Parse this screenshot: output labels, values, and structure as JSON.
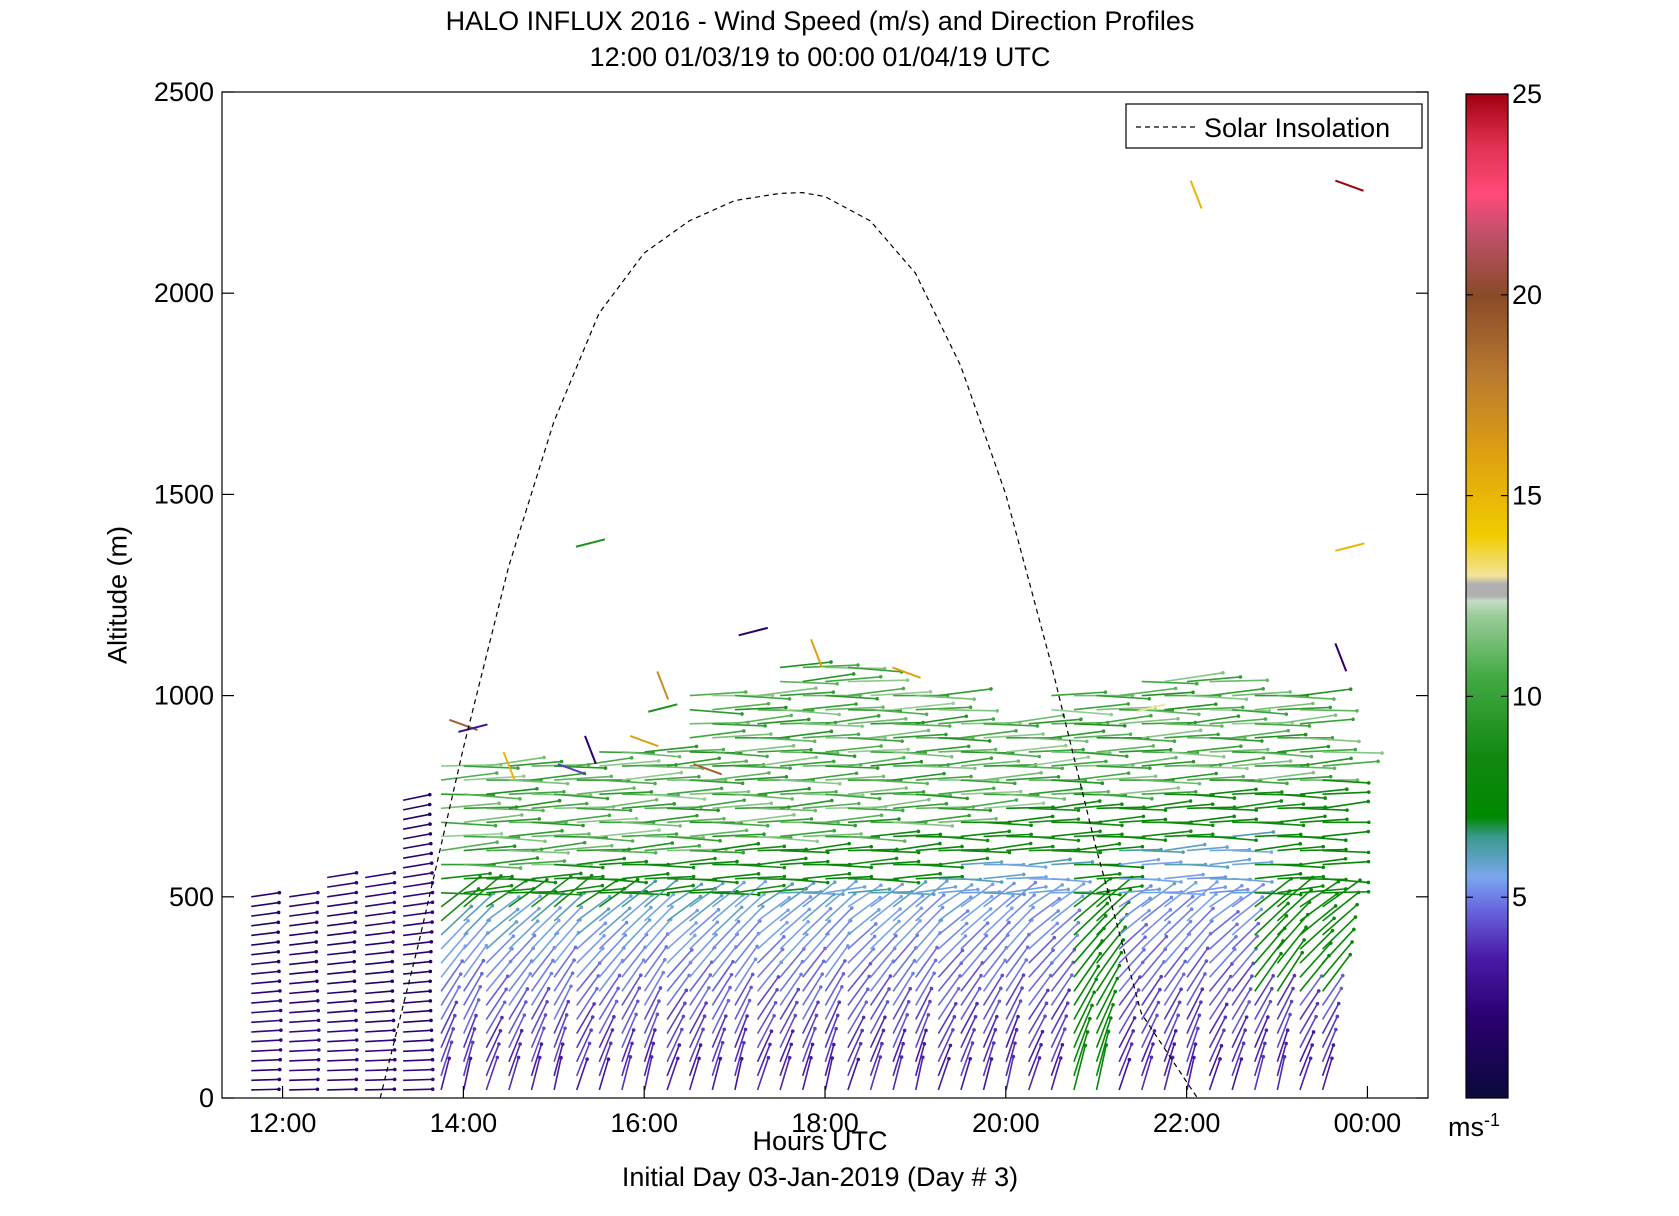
{
  "title": "HALO INFLUX 2016 - Wind Speed (m/s) and Direction Profiles",
  "subtitle": "12:00 01/03/19 to 00:00 01/04/19  UTC",
  "footer": "Initial Day 03-Jan-2019 (Day # 3)",
  "colorbar": {
    "unit_base": "ms",
    "unit_exp": "-1",
    "range": [
      0,
      25
    ],
    "ticks": [
      "5",
      "10",
      "15",
      "20",
      "25"
    ]
  },
  "chart_data": {
    "type": "quiver",
    "xlabel": "Hours UTC",
    "ylabel": "Altitude (m)",
    "xlim": [
      11.33,
      24.67
    ],
    "ylim": [
      0,
      2500
    ],
    "xticks": [
      {
        "value": 12,
        "label": "12:00"
      },
      {
        "value": 14,
        "label": "14:00"
      },
      {
        "value": 16,
        "label": "16:00"
      },
      {
        "value": 18,
        "label": "18:00"
      },
      {
        "value": 20,
        "label": "20:00"
      },
      {
        "value": 22,
        "label": "22:00"
      },
      {
        "value": 24,
        "label": "00:00"
      }
    ],
    "yticks": [
      "0",
      "500",
      "1000",
      "1500",
      "2000",
      "2500"
    ],
    "grid": false,
    "legend": {
      "position": "top-right",
      "entries": [
        "Solar Insolation"
      ]
    },
    "solar_insolation": {
      "style": "dashed",
      "color": "#000000",
      "x": [
        13.08,
        13.5,
        14.0,
        14.5,
        15.0,
        15.5,
        16.0,
        16.5,
        17.0,
        17.5,
        17.75,
        18.0,
        18.5,
        19.0,
        19.5,
        20.0,
        20.5,
        21.0,
        21.5,
        22.0,
        22.12
      ],
      "y": [
        0,
        380,
        870,
        1320,
        1680,
        1950,
        2100,
        2180,
        2230,
        2248,
        2250,
        2240,
        2180,
        2050,
        1820,
        1500,
        1080,
        620,
        210,
        40,
        0
      ]
    },
    "wind_samples": [
      {
        "hour": 12.0,
        "top": 500,
        "speed": 2,
        "dir": "W"
      },
      {
        "hour": 12.4,
        "top": 550,
        "speed": 2,
        "dir": "W"
      },
      {
        "hour": 12.8,
        "top": 560,
        "speed": 2,
        "dir": "W"
      },
      {
        "hour": 13.2,
        "top": 580,
        "speed": 2,
        "dir": "W"
      },
      {
        "hour": 13.6,
        "top": 750,
        "speed": 4,
        "dir": "SW"
      },
      {
        "hour": 14.0,
        "top": 830,
        "speed": 4,
        "dir": "SW"
      },
      {
        "hour": 15.0,
        "top": 850,
        "speed": 4,
        "dir": "SW"
      },
      {
        "hour": 16.0,
        "top": 880,
        "speed": 4,
        "dir": "SW"
      },
      {
        "hour": 17.0,
        "top": 1000,
        "speed": 4,
        "dir": "SW"
      },
      {
        "hour": 18.0,
        "top": 1080,
        "speed": 4,
        "dir": "SW"
      },
      {
        "hour": 19.0,
        "top": 1000,
        "speed": 4,
        "dir": "SW"
      },
      {
        "hour": 20.0,
        "top": 960,
        "speed": 5,
        "dir": "SW"
      },
      {
        "hour": 21.0,
        "top": 1000,
        "speed": 8,
        "dir": "SW"
      },
      {
        "hour": 22.0,
        "top": 1040,
        "speed": 8,
        "dir": "SW"
      },
      {
        "hour": 23.0,
        "top": 1000,
        "speed": 8,
        "dir": "SW"
      },
      {
        "hour": 23.75,
        "top": 880,
        "speed": 8,
        "dir": "SW"
      }
    ],
    "sparse_vectors": [
      {
        "hour": 14.0,
        "alt": 920,
        "speed": 19
      },
      {
        "hour": 14.1,
        "alt": 890,
        "speed": 3
      },
      {
        "hour": 14.6,
        "alt": 840,
        "speed": 15
      },
      {
        "hour": 15.2,
        "alt": 810,
        "speed": 4
      },
      {
        "hour": 15.4,
        "alt": 1350,
        "speed": 9
      },
      {
        "hour": 15.5,
        "alt": 880,
        "speed": 2
      },
      {
        "hour": 16.0,
        "alt": 880,
        "speed": 16
      },
      {
        "hour": 16.2,
        "alt": 940,
        "speed": 9
      },
      {
        "hour": 16.3,
        "alt": 1040,
        "speed": 17
      },
      {
        "hour": 16.7,
        "alt": 810,
        "speed": 19
      },
      {
        "hour": 17.2,
        "alt": 1130,
        "speed": 2
      },
      {
        "hour": 18.0,
        "alt": 1120,
        "speed": 16
      },
      {
        "hour": 18.9,
        "alt": 1050,
        "speed": 16
      },
      {
        "hour": 21.6,
        "alt": 940,
        "speed": 13
      },
      {
        "hour": 22.2,
        "alt": 2260,
        "speed": 15
      },
      {
        "hour": 23.8,
        "alt": 2260,
        "speed": 25
      },
      {
        "hour": 23.8,
        "alt": 1340,
        "speed": 15
      },
      {
        "hour": 23.8,
        "alt": 1110,
        "speed": 2
      }
    ]
  }
}
